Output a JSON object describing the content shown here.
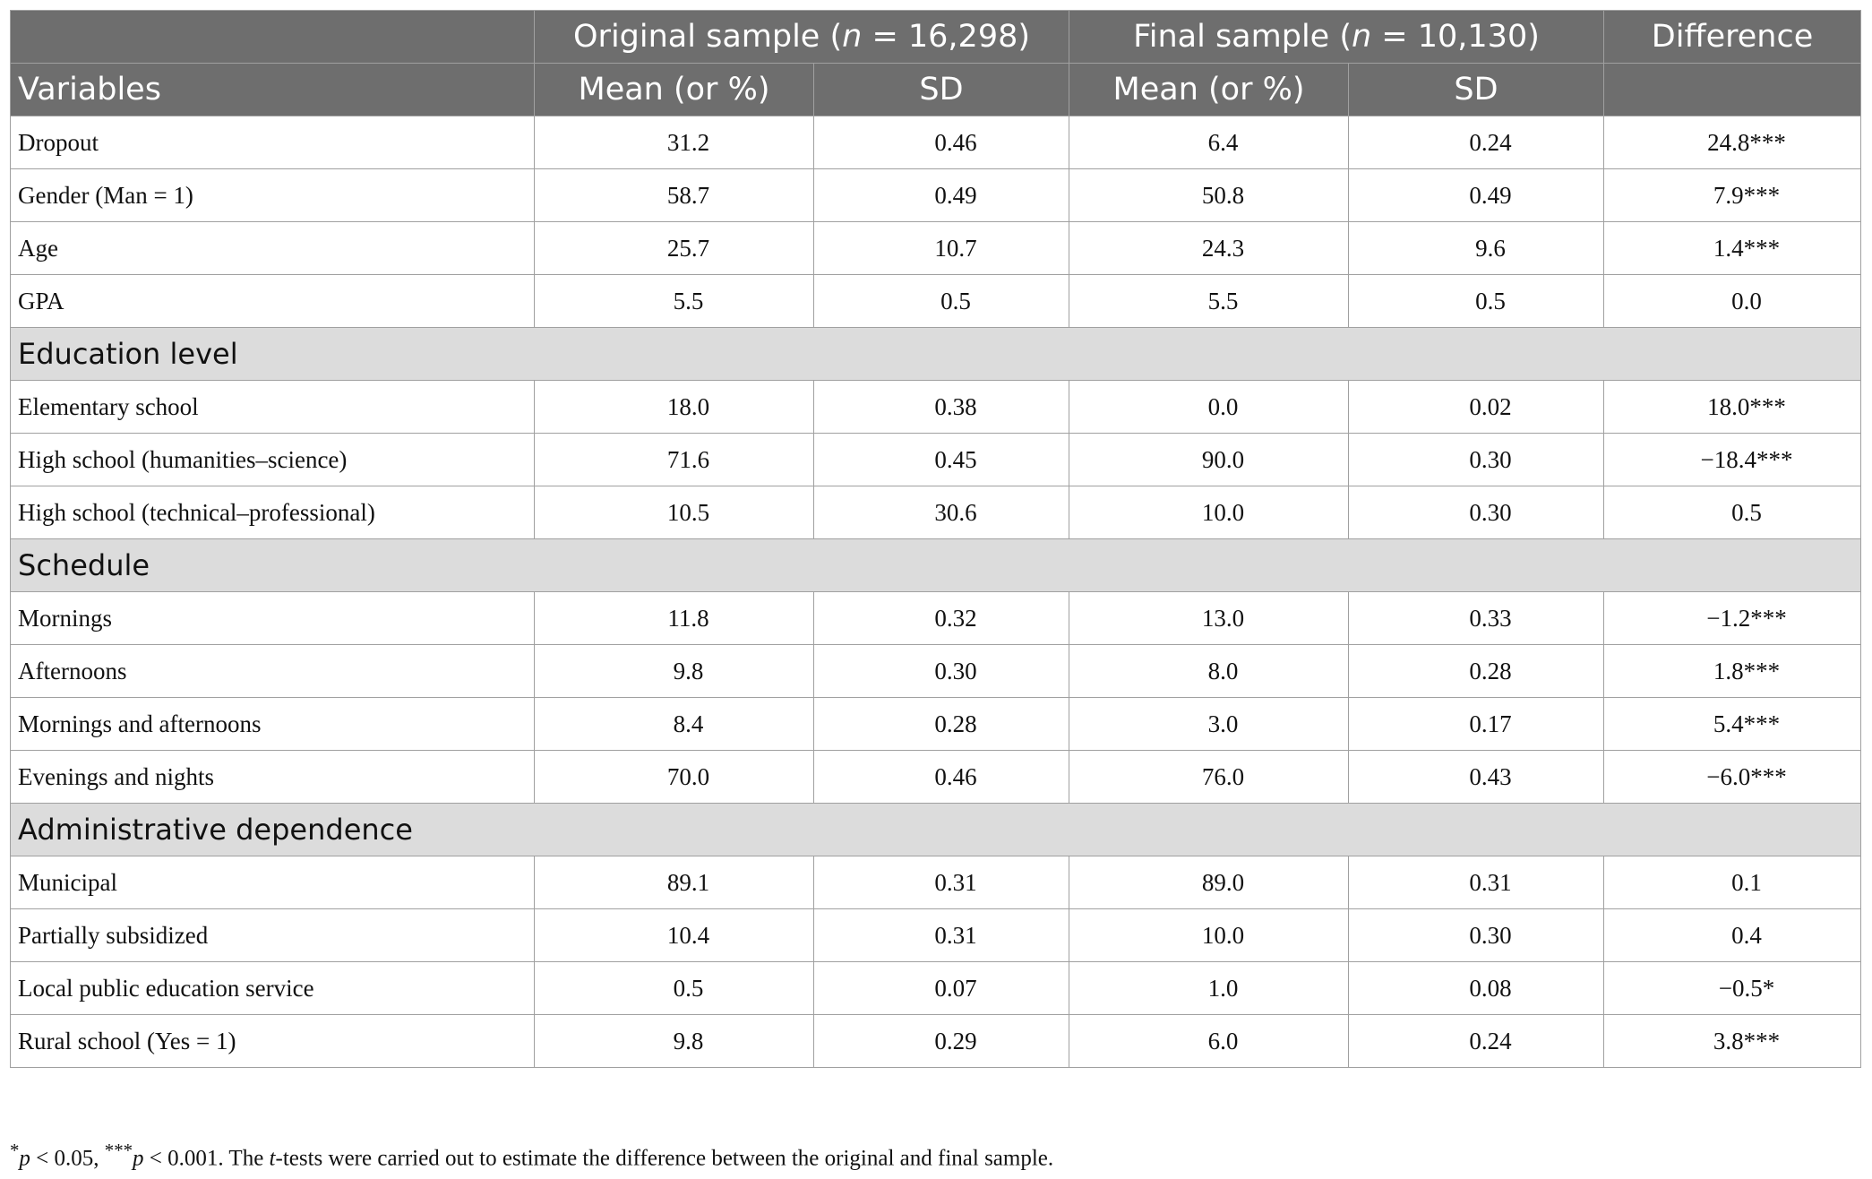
{
  "header": {
    "groups": [
      {
        "pre": "Original sample (",
        "em": "n",
        "post": " = 16,298)"
      },
      {
        "pre": "Final sample (",
        "em": "n",
        "post": " = 10,130)"
      }
    ],
    "difference": "Difference",
    "variables": "Variables",
    "subheads": [
      "Mean (or %)",
      "SD",
      "Mean (or %)",
      "SD"
    ]
  },
  "sections": [
    {
      "rows": [
        [
          "Dropout",
          "31.2",
          "0.46",
          "6.4",
          "0.24",
          "24.8***"
        ],
        [
          "Gender (Man = 1)",
          "58.7",
          "0.49",
          "50.8",
          "0.49",
          "7.9***"
        ],
        [
          "Age",
          "25.7",
          "10.7",
          "24.3",
          "9.6",
          "1.4***"
        ],
        [
          "GPA",
          "5.5",
          "0.5",
          "5.5",
          "0.5",
          "0.0"
        ]
      ]
    },
    {
      "title": "Education level",
      "rows": [
        [
          "Elementary school",
          "18.0",
          "0.38",
          "0.0",
          "0.02",
          "18.0***"
        ],
        [
          "High school (humanities–science)",
          "71.6",
          "0.45",
          "90.0",
          "0.30",
          "−18.4***"
        ],
        [
          "High school (technical–professional)",
          "10.5",
          "30.6",
          "10.0",
          "0.30",
          "0.5"
        ]
      ]
    },
    {
      "title": "Schedule",
      "rows": [
        [
          "Mornings",
          "11.8",
          "0.32",
          "13.0",
          "0.33",
          "−1.2***"
        ],
        [
          "Afternoons",
          "9.8",
          "0.30",
          "8.0",
          "0.28",
          "1.8***"
        ],
        [
          "Mornings and afternoons",
          "8.4",
          "0.28",
          "3.0",
          "0.17",
          "5.4***"
        ],
        [
          "Evenings and nights",
          "70.0",
          "0.46",
          "76.0",
          "0.43",
          "−6.0***"
        ]
      ]
    },
    {
      "title": "Administrative dependence",
      "rows": [
        [
          "Municipal",
          "89.1",
          "0.31",
          "89.0",
          "0.31",
          "0.1"
        ],
        [
          "Partially subsidized",
          "10.4",
          "0.31",
          "10.0",
          "0.30",
          "0.4"
        ],
        [
          "Local public education service",
          "0.5",
          "0.07",
          "1.0",
          "0.08",
          "−0.5*"
        ],
        [
          "Rural school (Yes = 1)",
          "9.8",
          "0.29",
          "6.0",
          "0.24",
          "3.8***"
        ]
      ]
    }
  ],
  "footnote": [
    "*",
    "p",
    " < 0.05, ",
    "***",
    "p",
    " < 0.001. The ",
    "t",
    "-tests were carried out to estimate the difference between the original and final sample."
  ]
}
